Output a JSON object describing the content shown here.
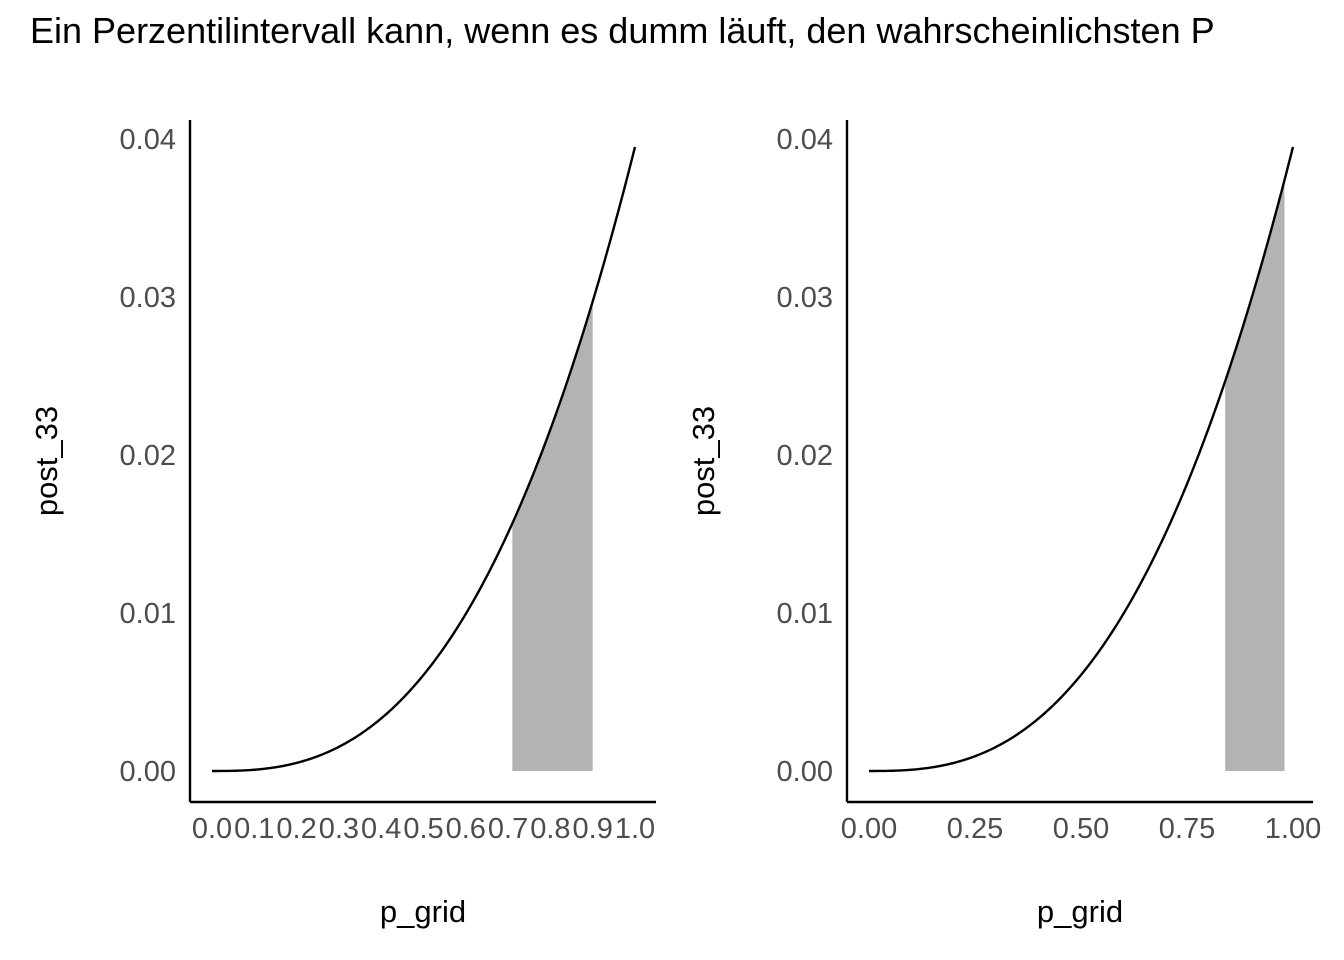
{
  "title": "Ein Perzentilintervall kann, wenn es dumm läuft, den wahrscheinlichsten P",
  "colors": {
    "band": "#b3b3b3",
    "curve": "#000000",
    "axis": "#000000",
    "tick_text": "#4d4d4d"
  },
  "chart_data": [
    {
      "type": "area",
      "subtype": "posterior density with shaded percentile interval",
      "xlabel": "p_grid",
      "ylabel": "post_33",
      "xlim": [
        0,
        1
      ],
      "ylim": [
        0,
        0.04
      ],
      "x_ticks": [
        0,
        0.1,
        0.2,
        0.3,
        0.4,
        0.5,
        0.6,
        0.7,
        0.8,
        0.9,
        1.0
      ],
      "x_tick_labels": [
        "0.0",
        "0.1",
        "0.2",
        "0.3",
        "0.4",
        "0.5",
        "0.6",
        "0.7",
        "0.8",
        "0.9",
        "1.0"
      ],
      "y_ticks": [
        0,
        0.01,
        0.02,
        0.03,
        0.04
      ],
      "y_tick_labels": [
        "0.00",
        "0.01",
        "0.02",
        "0.03",
        "0.04"
      ],
      "curve": {
        "x": [
          0,
          0.1,
          0.2,
          0.3,
          0.4,
          0.5,
          0.6,
          0.7,
          0.8,
          0.9,
          1.0
        ],
        "y": [
          0,
          4e-05,
          0.00032,
          0.00107,
          0.00253,
          0.00494,
          0.00853,
          0.01354,
          0.02022,
          0.02879,
          0.0395
        ]
      },
      "shaded_interval": [
        0.71,
        0.9
      ],
      "grid": false
    },
    {
      "type": "area",
      "subtype": "posterior density with shaded interval",
      "xlabel": "p_grid",
      "ylabel": "post_33",
      "xlim": [
        0,
        1
      ],
      "ylim": [
        0,
        0.04
      ],
      "x_ticks": [
        0,
        0.25,
        0.5,
        0.75,
        1.0
      ],
      "x_tick_labels": [
        "0.00",
        "0.25",
        "0.50",
        "0.75",
        "1.00"
      ],
      "y_ticks": [
        0,
        0.01,
        0.02,
        0.03,
        0.04
      ],
      "y_tick_labels": [
        "0.00",
        "0.01",
        "0.02",
        "0.03",
        "0.04"
      ],
      "curve": {
        "x": [
          0,
          0.1,
          0.2,
          0.3,
          0.4,
          0.5,
          0.6,
          0.7,
          0.8,
          0.9,
          1.0
        ],
        "y": [
          0,
          4e-05,
          0.00032,
          0.00107,
          0.00253,
          0.00494,
          0.00853,
          0.01354,
          0.02022,
          0.02879,
          0.0395
        ]
      },
      "shaded_interval": [
        0.84,
        0.98
      ],
      "grid": false
    }
  ]
}
